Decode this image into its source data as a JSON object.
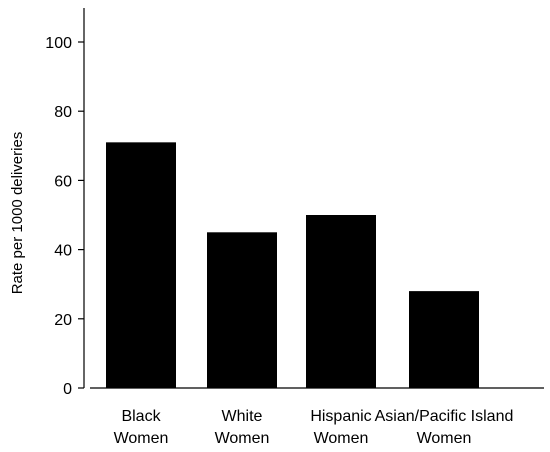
{
  "chart_data": {
    "type": "bar",
    "title": "",
    "xlabel": "",
    "ylabel": "Rate per 1000 deliveries",
    "categories": [
      [
        "Black",
        "Women"
      ],
      [
        "White",
        "Women"
      ],
      [
        "Hispanic",
        "Women"
      ],
      [
        "Asian/Pacific Island",
        "Women"
      ]
    ],
    "values": [
      71,
      45,
      50,
      28
    ],
    "ylim": [
      0,
      110
    ],
    "yticks": [
      "0",
      "20",
      "40",
      "60",
      "80",
      "100"
    ],
    "grid": false,
    "legend": "none",
    "bar_color": "#000000"
  }
}
